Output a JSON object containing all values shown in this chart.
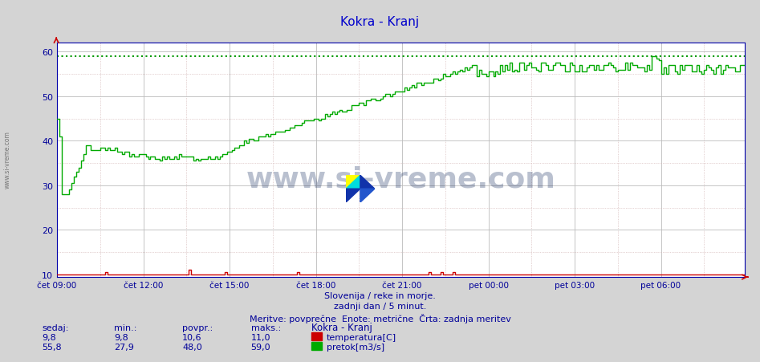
{
  "title": "Kokra - Kranj",
  "title_color": "#0000cc",
  "bg_color": "#d4d4d4",
  "plot_bg_color": "#ffffff",
  "grid_major_color": "#bbbbbb",
  "grid_minor_color_x": "#ccaaaa",
  "grid_minor_color_y": "#ccaaaa",
  "xlabel_color": "#000099",
  "yticks": [
    10,
    20,
    30,
    40,
    50,
    60
  ],
  "ylim_min": 9.5,
  "ylim_max": 62.0,
  "x_tick_labels": [
    "čet 09:00",
    "čet 12:00",
    "čet 15:00",
    "čet 18:00",
    "čet 21:00",
    "pet 00:00",
    "pet 03:00",
    "pet 06:00"
  ],
  "x_tick_positions": [
    0,
    36,
    72,
    108,
    144,
    180,
    216,
    252
  ],
  "x_minor_positions": [
    18,
    54,
    90,
    126,
    162,
    198,
    234,
    270
  ],
  "total_points": 288,
  "subtitle1": "Slovenija / reke in morje.",
  "subtitle2": "zadnji dan / 5 minut.",
  "subtitle3": "Meritve: povprečne  Enote: metrične  Črta: zadnja meritev",
  "legend_title": "Kokra - Kranj",
  "temp_label": "temperatura[C]",
  "flow_label": "pretok[m3/s]",
  "temp_color": "#cc0000",
  "flow_color": "#00aa00",
  "max_line_color": "#009900",
  "max_flow": 59.0,
  "sedaj_temp": "9,8",
  "min_temp": "9,8",
  "povpr_temp": "10,6",
  "maks_temp": "11,0",
  "sedaj_flow": "55,8",
  "min_flow": "27,9",
  "povpr_flow": "48,0",
  "maks_flow": "59,0",
  "watermark": "www.si-vreme.com",
  "watermark_color": "#1a3060",
  "side_text": "www.si-vreme.com",
  "spine_color": "#0000aa",
  "arrow_color": "#cc0000"
}
